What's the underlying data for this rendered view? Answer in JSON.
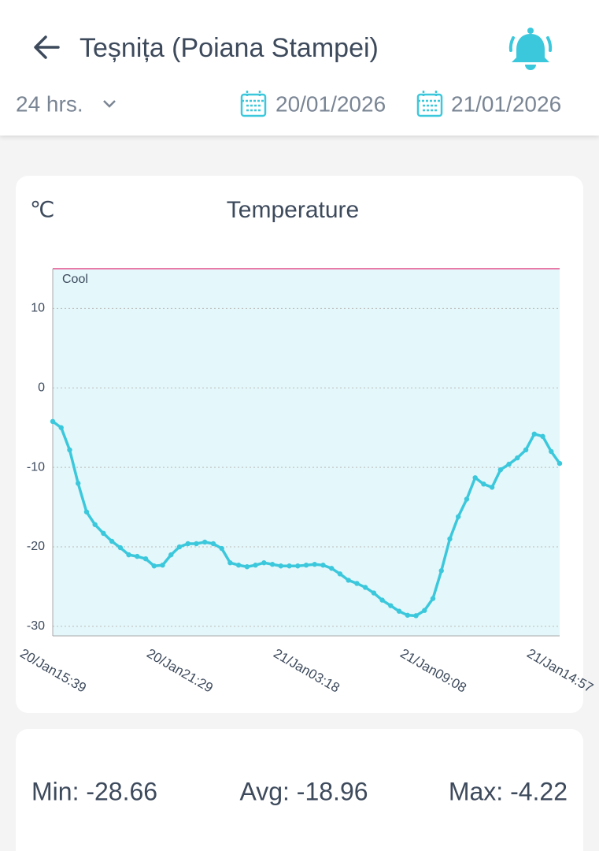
{
  "header": {
    "title": "Teșnița (Poiana Stampei)",
    "range": "24 hrs.",
    "date_from": "20/01/2026",
    "date_to": "21/01/2026"
  },
  "chart_data": {
    "type": "line",
    "title": "Temperature",
    "y_unit": "℃",
    "categories": [
      "20/Jan15:39",
      null,
      null,
      null,
      null,
      null,
      null,
      null,
      null,
      null,
      null,
      null,
      null,
      null,
      null,
      "20/Jan21:29",
      null,
      null,
      null,
      null,
      null,
      null,
      null,
      null,
      null,
      null,
      null,
      null,
      null,
      null,
      "21/Jan03:18",
      null,
      null,
      null,
      null,
      null,
      null,
      null,
      null,
      null,
      null,
      null,
      null,
      null,
      null,
      "21/Jan09:08",
      null,
      null,
      null,
      null,
      null,
      null,
      null,
      null,
      null,
      null,
      null,
      null,
      null,
      null,
      "21/Jan14:57"
    ],
    "series": [
      {
        "name": "Temperature",
        "color": "#3cc8dc",
        "values": [
          -4.22,
          -5.0,
          -7.8,
          -12.0,
          -15.6,
          -17.2,
          -18.3,
          -19.3,
          -20.1,
          -21.0,
          -21.2,
          -21.5,
          -22.4,
          -22.3,
          -21.0,
          -20.0,
          -19.6,
          -19.6,
          -19.4,
          -19.6,
          -20.2,
          -22.0,
          -22.3,
          -22.5,
          -22.3,
          -22.0,
          -22.2,
          -22.4,
          -22.4,
          -22.4,
          -22.3,
          -22.2,
          -22.3,
          -22.7,
          -23.4,
          -24.2,
          -24.6,
          -25.1,
          -25.8,
          -26.7,
          -27.4,
          -28.1,
          -28.6,
          -28.66,
          -28.0,
          -26.5,
          -23.0,
          -19.0,
          -16.2,
          -14.0,
          -11.3,
          -12.1,
          -12.5,
          -10.3,
          -9.6,
          -8.8,
          -7.8,
          -5.8,
          -6.1,
          -8.0,
          -9.5
        ]
      }
    ],
    "ylim": [
      -31.2,
      15
    ],
    "yticks": [
      -30,
      -20,
      -10,
      0,
      10
    ],
    "grid": true,
    "band": {
      "label": "Cool",
      "to": 15,
      "color": "#e4f7fa",
      "line_color": "#e87aa8"
    }
  },
  "stats": {
    "min": "Min: -28.66",
    "avg": "Avg: -18.96",
    "max": "Max: -4.22"
  }
}
